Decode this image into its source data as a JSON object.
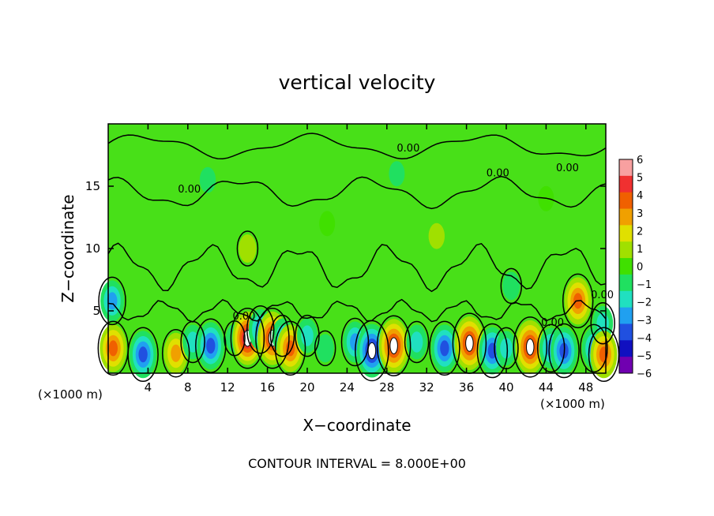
{
  "chart_data": {
    "type": "heatmap",
    "title": "vertical velocity",
    "xlabel": "X−coordinate",
    "ylabel": "Z−coordinate",
    "x_unit_left": "(×1000 m)",
    "x_unit_right": "(×1000 m)",
    "xlim": [
      0,
      50
    ],
    "ylim": [
      0,
      20
    ],
    "x_ticks": [
      4,
      8,
      12,
      16,
      20,
      24,
      28,
      32,
      36,
      40,
      44,
      48
    ],
    "y_ticks": [
      5,
      10,
      15
    ],
    "footer": "CONTOUR INTERVAL = 8.000E+00",
    "contour_label": "0.00",
    "colorbar": {
      "min": -6,
      "max": 6,
      "ticks": [
        "6",
        "5",
        "4",
        "3",
        "2",
        "1",
        "0",
        "−1",
        "−2",
        "−3",
        "−4",
        "−5",
        "−6"
      ],
      "colors": [
        "#f8a0a0",
        "#f03030",
        "#f06000",
        "#f0a000",
        "#e0e000",
        "#a0e000",
        "#40e000",
        "#20e060",
        "#20e0c0",
        "#20a0f0",
        "#2050e0",
        "#1010c0",
        "#7000b0"
      ]
    },
    "features": [
      {
        "x": 0.4,
        "z": 5.8,
        "w": -3
      },
      {
        "x": 0.5,
        "z": 2.0,
        "w": 4
      },
      {
        "x": 3.5,
        "z": 1.5,
        "w": -4
      },
      {
        "x": 6.8,
        "z": 1.6,
        "w": 3
      },
      {
        "x": 8.5,
        "z": 2.5,
        "w": -2
      },
      {
        "x": 10.3,
        "z": 2.2,
        "w": -4
      },
      {
        "x": 12.7,
        "z": 2.8,
        "w": -1
      },
      {
        "x": 14.0,
        "z": 2.8,
        "w": 6
      },
      {
        "x": 15.3,
        "z": 3.5,
        "w": -3
      },
      {
        "x": 16.5,
        "z": 2.8,
        "w": 5
      },
      {
        "x": 17.5,
        "z": 3.0,
        "w": -2
      },
      {
        "x": 18.3,
        "z": 2.0,
        "w": 4
      },
      {
        "x": 20.0,
        "z": 3.0,
        "w": -2
      },
      {
        "x": 21.8,
        "z": 2.0,
        "w": -1
      },
      {
        "x": 24.8,
        "z": 2.5,
        "w": -3
      },
      {
        "x": 26.5,
        "z": 1.8,
        "w": -5
      },
      {
        "x": 28.7,
        "z": 2.2,
        "w": 5
      },
      {
        "x": 31.0,
        "z": 2.5,
        "w": -2
      },
      {
        "x": 33.8,
        "z": 2.0,
        "w": -4
      },
      {
        "x": 36.3,
        "z": 2.4,
        "w": 5
      },
      {
        "x": 38.6,
        "z": 1.8,
        "w": -4
      },
      {
        "x": 40.0,
        "z": 2.0,
        "w": -2
      },
      {
        "x": 42.4,
        "z": 2.1,
        "w": 5
      },
      {
        "x": 44.5,
        "z": 2.0,
        "w": -3
      },
      {
        "x": 45.8,
        "z": 1.8,
        "w": -4
      },
      {
        "x": 47.2,
        "z": 5.8,
        "w": 4
      },
      {
        "x": 48.8,
        "z": 2.0,
        "w": -3
      },
      {
        "x": 49.7,
        "z": 4.0,
        "w": -2
      },
      {
        "x": 49.8,
        "z": 1.5,
        "w": 4
      },
      {
        "x": 14.0,
        "z": 10.0,
        "w": 1
      },
      {
        "x": 22.0,
        "z": 12.0,
        "w": 0.5
      },
      {
        "x": 33.0,
        "z": 11.0,
        "w": 0.6
      },
      {
        "x": 40.5,
        "z": 7.0,
        "w": -1
      },
      {
        "x": 10.0,
        "z": 15.5,
        "w": -0.6
      },
      {
        "x": 29.0,
        "z": 16.0,
        "w": -0.5
      },
      {
        "x": 44.0,
        "z": 14.0,
        "w": 0.5
      }
    ]
  }
}
